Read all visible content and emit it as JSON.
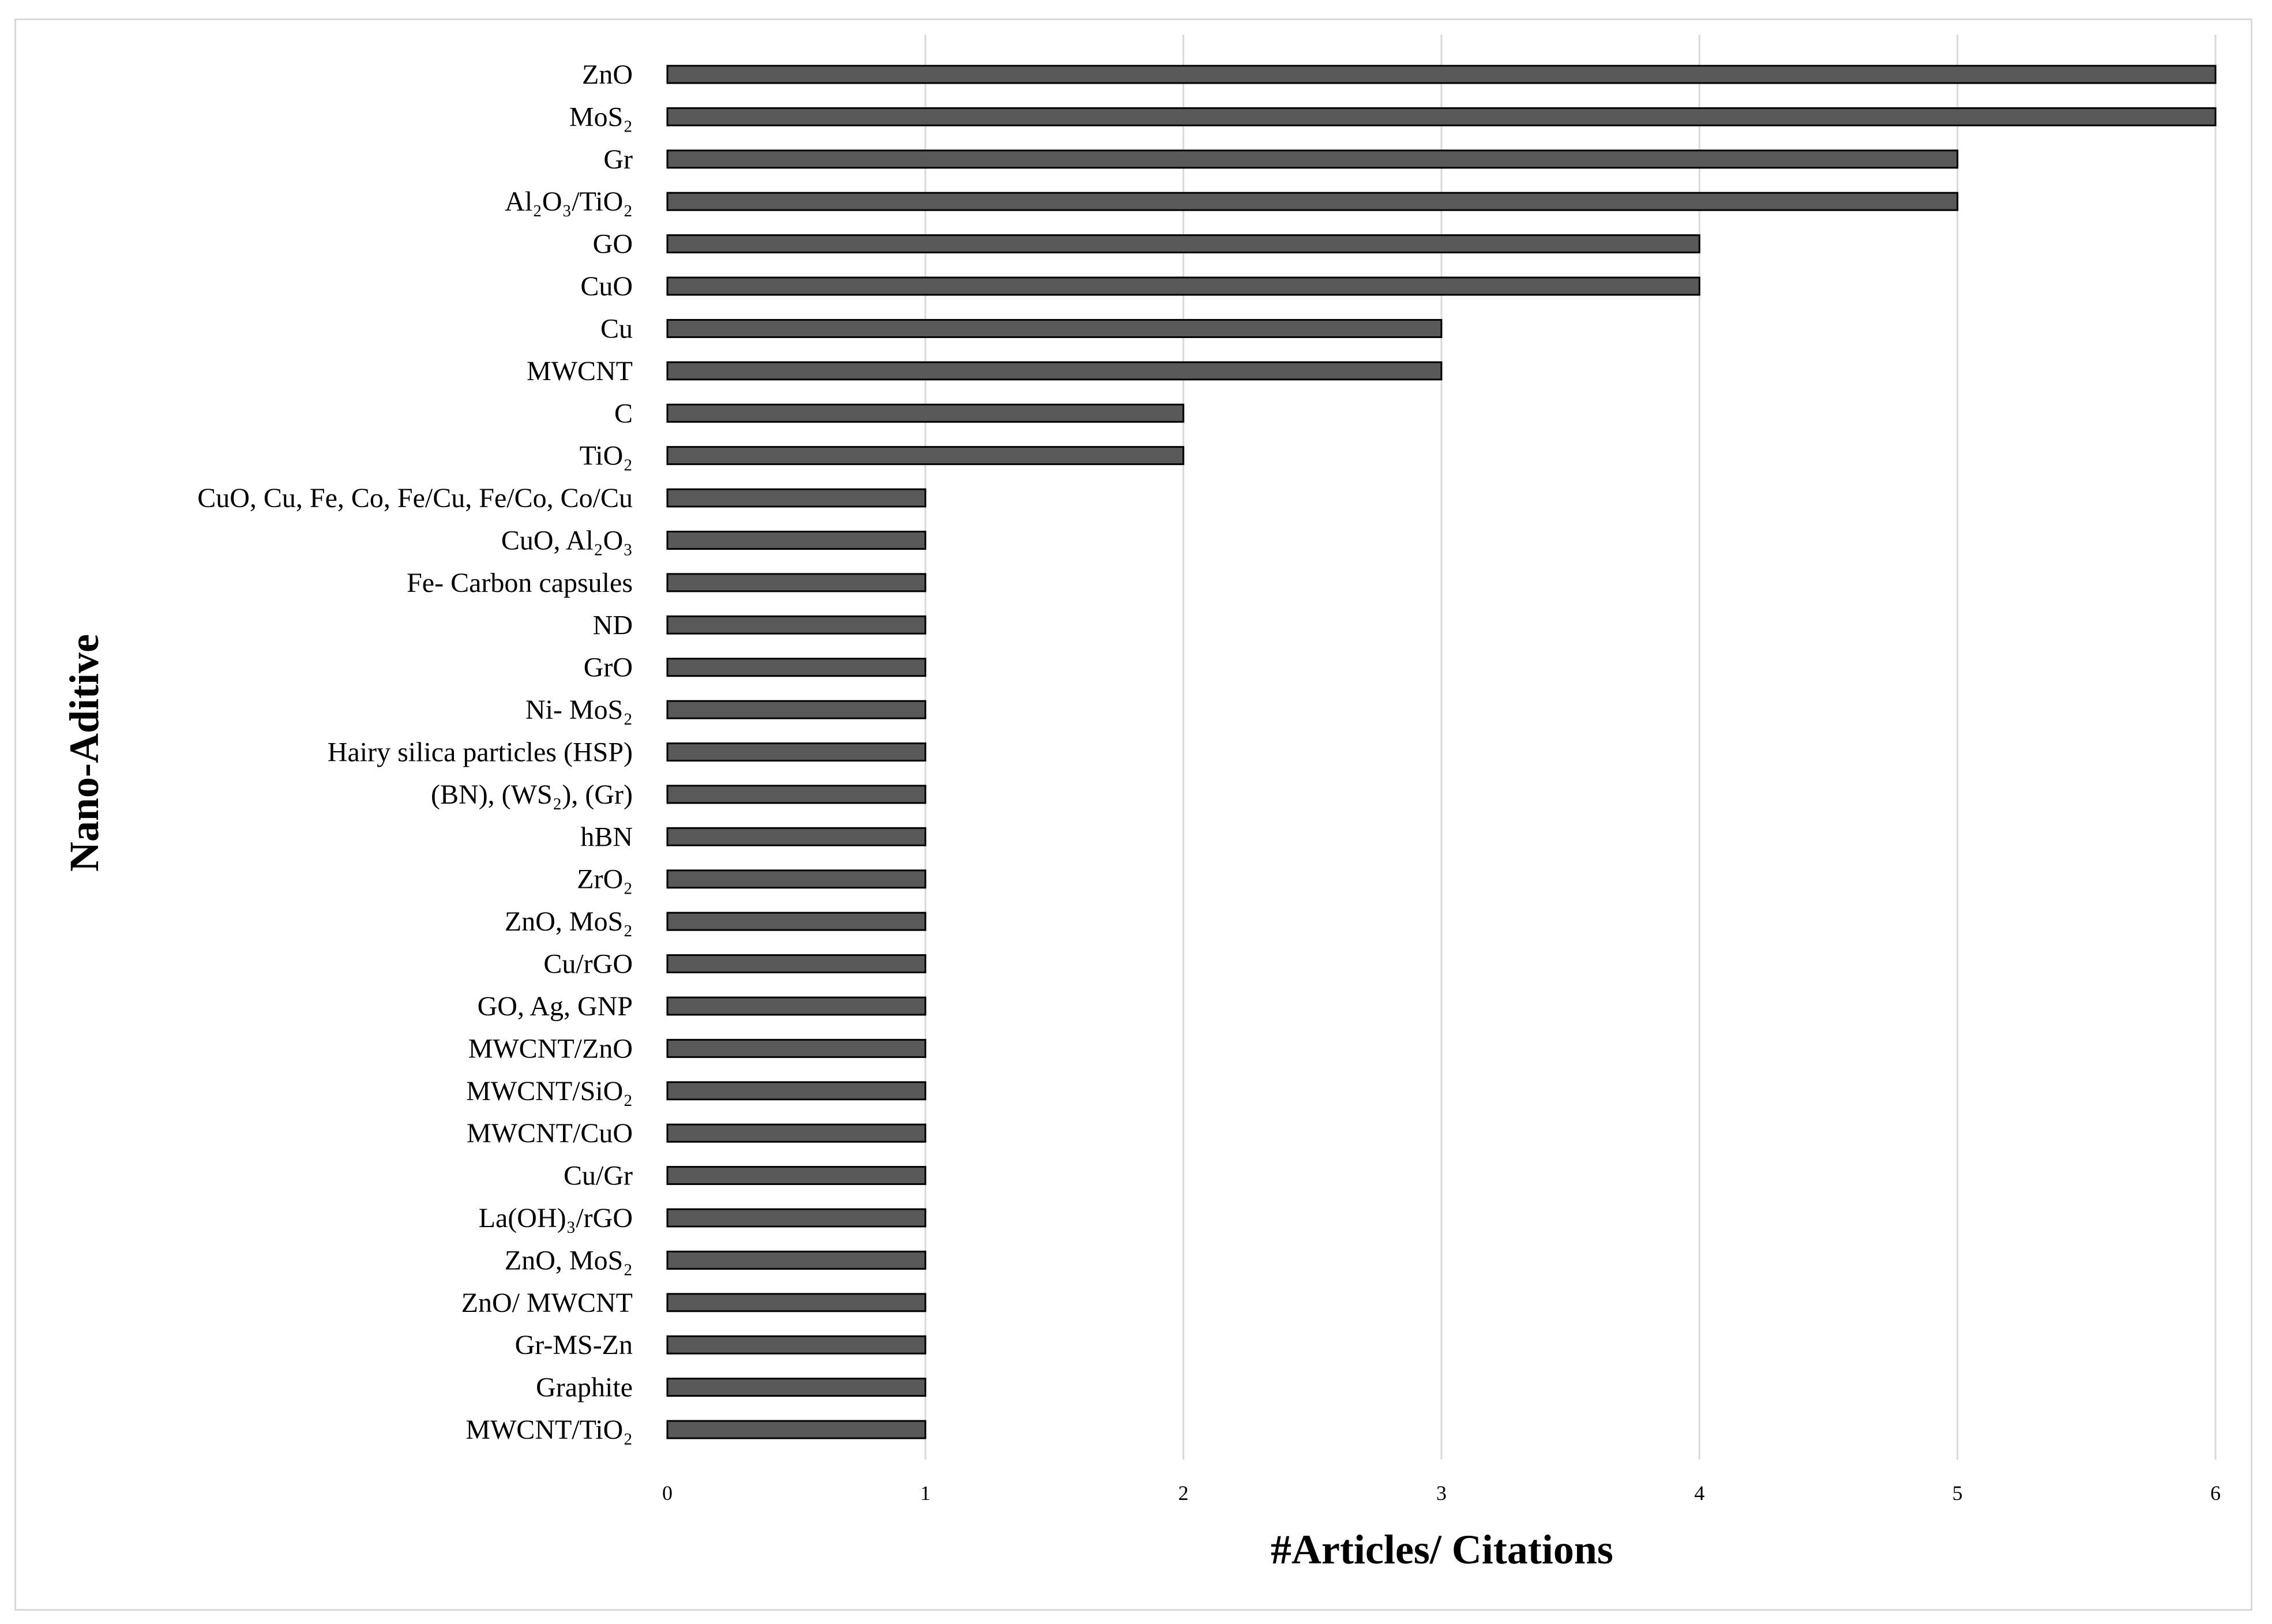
{
  "chart_data": {
    "type": "bar",
    "orientation": "horizontal",
    "xlabel": "#Articles/ Citations",
    "ylabel": "Nano-Aditive",
    "xlim": [
      0,
      6
    ],
    "x_ticks": [
      "0",
      "1",
      "2",
      "3",
      "4",
      "5",
      "6"
    ],
    "grid": "vertical",
    "legend": "none",
    "bar_color": "#595959",
    "categories": [
      "ZnO",
      "MoS₂",
      "Gr",
      "Al₂O₃/TiO₂",
      "GO",
      "CuO",
      "Cu",
      "MWCNT",
      "C",
      "TiO₂",
      "CuO, Cu, Fe, Co, Fe/Cu, Fe/Co, Co/Cu",
      "CuO, Al₂O₃",
      "Fe- Carbon capsules",
      "ND",
      "GrO",
      "Ni- MoS₂",
      "Hairy silica particles  (HSP)",
      "(BN), (WS₂), (Gr)",
      "hBN",
      "ZrO₂",
      "ZnO, MoS₂",
      "Cu/rGO",
      "GO, Ag, GNP",
      "MWCNT/ZnO",
      "MWCNT/SiO₂",
      "MWCNT/CuO",
      "Cu/Gr",
      "La(OH)₃/rGO",
      "ZnO, MoS₂",
      "ZnO/ MWCNT",
      "Gr-MS-Zn",
      "Graphite",
      "MWCNT/TiO₂"
    ],
    "values": [
      6,
      6,
      5,
      5,
      4,
      4,
      3,
      3,
      2,
      2,
      1,
      1,
      1,
      1,
      1,
      1,
      1,
      1,
      1,
      1,
      1,
      1,
      1,
      1,
      1,
      1,
      1,
      1,
      1,
      1,
      1,
      1,
      1
    ]
  }
}
